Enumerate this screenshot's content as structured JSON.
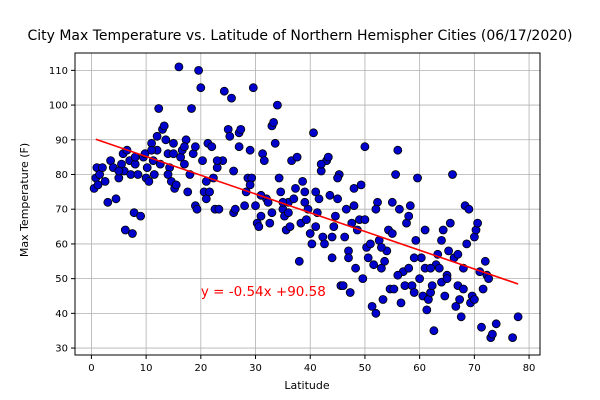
{
  "chart_data": {
    "type": "scatter",
    "title": "City Max Temperature vs. Latitude of Northern Hemispher Cities (06/17/2020)",
    "xlabel": "Latitude",
    "ylabel": "Max Temperature (F)",
    "xlim": [
      -3,
      82
    ],
    "ylim": [
      28,
      115
    ],
    "xticks": [
      0,
      10,
      20,
      30,
      40,
      50,
      60,
      70,
      80
    ],
    "yticks": [
      30,
      40,
      50,
      60,
      70,
      80,
      90,
      100,
      110
    ],
    "grid": true,
    "colors": {
      "point_fill": "#0000cc",
      "point_edge": "#000000",
      "regression": "#ff0000",
      "annotation": "#ff0000",
      "grid": "#b0b0b0"
    },
    "regression": {
      "slope": -0.54,
      "intercept": 90.58,
      "x_range": [
        0.8,
        78
      ],
      "annotation": "y = -0.54x +90.58",
      "annotation_pos": [
        20,
        45
      ]
    },
    "series": [
      {
        "values": [
          [
            0.5,
            76
          ],
          [
            0.8,
            79
          ],
          [
            1,
            82
          ],
          [
            1.2,
            77
          ],
          [
            1.5,
            80
          ],
          [
            2,
            82
          ],
          [
            2.5,
            78
          ],
          [
            3,
            72
          ],
          [
            3.5,
            84
          ],
          [
            4,
            82
          ],
          [
            4.5,
            73
          ],
          [
            5,
            79
          ],
          [
            5.5,
            83
          ],
          [
            5.8,
            86
          ],
          [
            6,
            81
          ],
          [
            6.2,
            64
          ],
          [
            6.5,
            87
          ],
          [
            7,
            84
          ],
          [
            7.2,
            80
          ],
          [
            7.5,
            63
          ],
          [
            7.8,
            69
          ],
          [
            8,
            83
          ],
          [
            8.5,
            80
          ],
          [
            9,
            68
          ],
          [
            9.5,
            85
          ],
          [
            9.8,
            86
          ],
          [
            10,
            79
          ],
          [
            10.2,
            82
          ],
          [
            10.5,
            78
          ],
          [
            11,
            89
          ],
          [
            11.3,
            84
          ],
          [
            11.5,
            80
          ],
          [
            12,
            87
          ],
          [
            12.3,
            99
          ],
          [
            12.6,
            83
          ],
          [
            13,
            93
          ],
          [
            13.3,
            94
          ],
          [
            13.6,
            90
          ],
          [
            14,
            86
          ],
          [
            14.3,
            82
          ],
          [
            14.6,
            78
          ],
          [
            15,
            86
          ],
          [
            15.2,
            76
          ],
          [
            15.5,
            77
          ],
          [
            16,
            111
          ],
          [
            16.3,
            85
          ],
          [
            16.6,
            87
          ],
          [
            17,
            83
          ],
          [
            17.3,
            90
          ],
          [
            17.6,
            75
          ],
          [
            18,
            80
          ],
          [
            18.3,
            99
          ],
          [
            18.6,
            86
          ],
          [
            19,
            71
          ],
          [
            19.3,
            70
          ],
          [
            19.6,
            110
          ],
          [
            20,
            105
          ],
          [
            20.3,
            84
          ],
          [
            20.6,
            75
          ],
          [
            21,
            73
          ],
          [
            21.3,
            89
          ],
          [
            21.6,
            75
          ],
          [
            22,
            88
          ],
          [
            22.3,
            79
          ],
          [
            22.6,
            70
          ],
          [
            23,
            82
          ],
          [
            23.3,
            70
          ],
          [
            24,
            84
          ],
          [
            24.3,
            104
          ],
          [
            25,
            93
          ],
          [
            25.3,
            91
          ],
          [
            25.6,
            102
          ],
          [
            26,
            69
          ],
          [
            26.3,
            70
          ],
          [
            27,
            92
          ],
          [
            27.3,
            93
          ],
          [
            28,
            71
          ],
          [
            28.3,
            75
          ],
          [
            28.6,
            79
          ],
          [
            29,
            87
          ],
          [
            29.3,
            79
          ],
          [
            29.6,
            105
          ],
          [
            30,
            71
          ],
          [
            30.3,
            66
          ],
          [
            30.6,
            65
          ],
          [
            31,
            68
          ],
          [
            31.3,
            86
          ],
          [
            31.6,
            84
          ],
          [
            32,
            73
          ],
          [
            32.3,
            72
          ],
          [
            32.6,
            66
          ],
          [
            33,
            94
          ],
          [
            33.3,
            95
          ],
          [
            33.6,
            89
          ],
          [
            34,
            100
          ],
          [
            34.3,
            79
          ],
          [
            34.6,
            75
          ],
          [
            35,
            70
          ],
          [
            35.3,
            68
          ],
          [
            35.6,
            64
          ],
          [
            36,
            72
          ],
          [
            36.3,
            65
          ],
          [
            36.6,
            84
          ],
          [
            37,
            73
          ],
          [
            37.3,
            76
          ],
          [
            37.6,
            85
          ],
          [
            38,
            55
          ],
          [
            38.3,
            66
          ],
          [
            38.6,
            78
          ],
          [
            39,
            75
          ],
          [
            39.3,
            67
          ],
          [
            39.6,
            70
          ],
          [
            40,
            63
          ],
          [
            40.3,
            60
          ],
          [
            40.6,
            92
          ],
          [
            41,
            75
          ],
          [
            41.3,
            69
          ],
          [
            41.6,
            73
          ],
          [
            42,
            81
          ],
          [
            42.3,
            62
          ],
          [
            42.6,
            60
          ],
          [
            43,
            84
          ],
          [
            43.3,
            85
          ],
          [
            43.6,
            74
          ],
          [
            44,
            56
          ],
          [
            44.3,
            65
          ],
          [
            44.6,
            68
          ],
          [
            45,
            73
          ],
          [
            45.3,
            80
          ],
          [
            45.6,
            48
          ],
          [
            46,
            48
          ],
          [
            46.3,
            62
          ],
          [
            46.6,
            70
          ],
          [
            47,
            58
          ],
          [
            47.3,
            46
          ],
          [
            47.6,
            66
          ],
          [
            48,
            71
          ],
          [
            48.3,
            53
          ],
          [
            48.6,
            64
          ],
          [
            49,
            67
          ],
          [
            49.3,
            77
          ],
          [
            49.6,
            50
          ],
          [
            50,
            88
          ],
          [
            50.3,
            59
          ],
          [
            50.6,
            56
          ],
          [
            51,
            60
          ],
          [
            51.3,
            42
          ],
          [
            51.6,
            54
          ],
          [
            52,
            40
          ],
          [
            52.3,
            72
          ],
          [
            52.6,
            61
          ],
          [
            53,
            53
          ],
          [
            53.3,
            44
          ],
          [
            53.6,
            55
          ],
          [
            54,
            58
          ],
          [
            54.3,
            64
          ],
          [
            54.6,
            47
          ],
          [
            55,
            63
          ],
          [
            55.3,
            47
          ],
          [
            55.6,
            80
          ],
          [
            56,
            87
          ],
          [
            56.3,
            70
          ],
          [
            56.6,
            43
          ],
          [
            57,
            52
          ],
          [
            57.3,
            48
          ],
          [
            57.6,
            66
          ],
          [
            58,
            53
          ],
          [
            58.3,
            71
          ],
          [
            58.6,
            48
          ],
          [
            59,
            46
          ],
          [
            59.3,
            61
          ],
          [
            59.6,
            79
          ],
          [
            60,
            50
          ],
          [
            60.3,
            56
          ],
          [
            60.6,
            45
          ],
          [
            61,
            53
          ],
          [
            61.3,
            41
          ],
          [
            61.6,
            44
          ],
          [
            62,
            46
          ],
          [
            62.3,
            48
          ],
          [
            62.6,
            35
          ],
          [
            63,
            54
          ],
          [
            63.3,
            57
          ],
          [
            63.6,
            53
          ],
          [
            64,
            49
          ],
          [
            64.3,
            64
          ],
          [
            64.6,
            45
          ],
          [
            65,
            51
          ],
          [
            65.3,
            58
          ],
          [
            65.6,
            66
          ],
          [
            66,
            80
          ],
          [
            66.3,
            56
          ],
          [
            66.6,
            42
          ],
          [
            67,
            48
          ],
          [
            67.3,
            44
          ],
          [
            67.6,
            39
          ],
          [
            68,
            53
          ],
          [
            68.3,
            71
          ],
          [
            68.6,
            60
          ],
          [
            69,
            70
          ],
          [
            69.3,
            43
          ],
          [
            69.6,
            45
          ],
          [
            70,
            62
          ],
          [
            70.3,
            64
          ],
          [
            70.6,
            66
          ],
          [
            71,
            52
          ],
          [
            71.3,
            36
          ],
          [
            71.6,
            47
          ],
          [
            72,
            55
          ],
          [
            72.3,
            51
          ],
          [
            72.6,
            50
          ],
          [
            73,
            33
          ],
          [
            73.3,
            34
          ],
          [
            74,
            37
          ],
          [
            77,
            33
          ],
          [
            78,
            39
          ],
          [
            5,
            81
          ],
          [
            8,
            85
          ],
          [
            11,
            87
          ],
          [
            14,
            80
          ],
          [
            17,
            88
          ],
          [
            21,
            78
          ],
          [
            26,
            81
          ],
          [
            31,
            74
          ],
          [
            36,
            69
          ],
          [
            41,
            65
          ],
          [
            44,
            62
          ],
          [
            47,
            56
          ],
          [
            50,
            67
          ],
          [
            53,
            59
          ],
          [
            56,
            51
          ],
          [
            59,
            56
          ],
          [
            62,
            53
          ],
          [
            65,
            50
          ],
          [
            68,
            47
          ],
          [
            70,
            44
          ],
          [
            52,
            70
          ],
          [
            55,
            72
          ],
          [
            58,
            68
          ],
          [
            61,
            64
          ],
          [
            64,
            61
          ],
          [
            67,
            57
          ],
          [
            48,
            76
          ],
          [
            45,
            79
          ],
          [
            42,
            83
          ],
          [
            39,
            72
          ],
          [
            35,
            72
          ],
          [
            33,
            69
          ],
          [
            29,
            77
          ],
          [
            27,
            88
          ],
          [
            23,
            84
          ],
          [
            19,
            88
          ],
          [
            15,
            89
          ],
          [
            12,
            91
          ]
        ]
      }
    ]
  }
}
